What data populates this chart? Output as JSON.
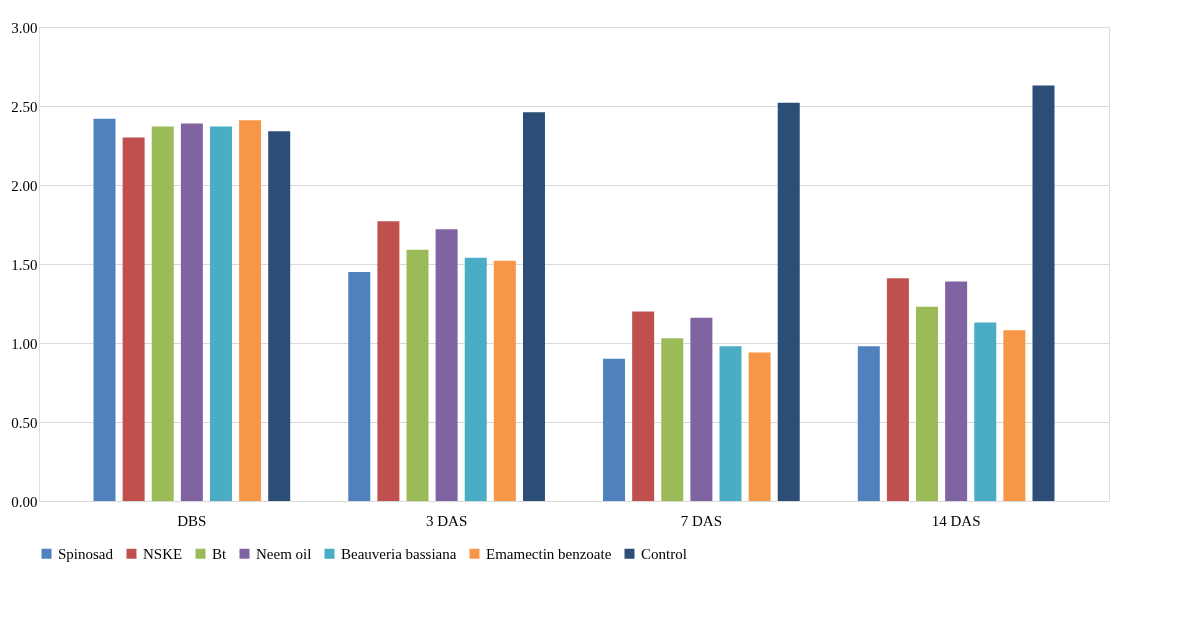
{
  "chart_data": {
    "type": "bar",
    "categories": [
      "DBS",
      "3 DAS",
      "7 DAS",
      "14 DAS"
    ],
    "series": [
      {
        "name": "Spinosad",
        "color": "#4f81bd",
        "values": [
          2.42,
          1.45,
          0.9,
          0.98
        ]
      },
      {
        "name": "NSKE",
        "color": "#c0504d",
        "values": [
          2.3,
          1.77,
          1.2,
          1.41
        ]
      },
      {
        "name": "Bt",
        "color": "#9bbb59",
        "values": [
          2.37,
          1.59,
          1.03,
          1.23
        ]
      },
      {
        "name": "Neem oil",
        "color": "#8064a2",
        "values": [
          2.39,
          1.72,
          1.16,
          1.39
        ]
      },
      {
        "name": "Beauveria bassiana",
        "color": "#4bacc6",
        "values": [
          2.37,
          1.54,
          0.98,
          1.13
        ]
      },
      {
        "name": "Emamectin benzoate",
        "color": "#f79646",
        "values": [
          2.41,
          1.52,
          0.94,
          1.08
        ]
      },
      {
        "name": "Control",
        "color": "#2c4d75",
        "values": [
          2.34,
          2.46,
          2.52,
          2.63
        ]
      }
    ],
    "ylim": [
      0,
      3
    ],
    "yticks": [
      {
        "value": 0,
        "label": "0.00"
      },
      {
        "value": 0.5,
        "label": "0.50"
      },
      {
        "value": 1,
        "label": "1.00"
      },
      {
        "value": 1.5,
        "label": "1.50"
      },
      {
        "value": 2,
        "label": "2.00"
      },
      {
        "value": 2.5,
        "label": "2.50"
      },
      {
        "value": 3,
        "label": "3.00"
      }
    ],
    "grid": "y",
    "legend": "bottom"
  }
}
